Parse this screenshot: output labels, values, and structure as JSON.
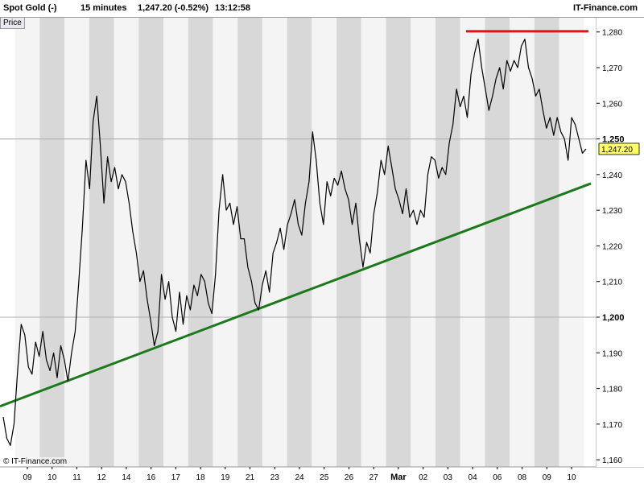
{
  "header": {
    "instrument": "Spot Gold (-)",
    "interval": "15 minutes",
    "quote": "1,247.20 (-0.52%)",
    "time": "13:12:58",
    "brand": "IT-Finance.com"
  },
  "panel_label": "Price",
  "copyright": "© IT-Finance.com",
  "colors": {
    "price_line": "#000000",
    "support_line": "#1a7a1a",
    "resistance_line": "#e81010",
    "band_dark": "#d8d8d8",
    "band_light": "#f4f4f4",
    "last_price_box": "#ffff66"
  },
  "chart_data": {
    "type": "line",
    "title": "",
    "xlabel": "",
    "ylabel": "",
    "ylim": [
      1158,
      1284
    ],
    "y_ticks": [
      1160,
      1170,
      1180,
      1190,
      1200,
      1210,
      1220,
      1230,
      1240,
      1250,
      1260,
      1270,
      1280
    ],
    "y_bold_ticks": [
      1200,
      1250
    ],
    "x_ticks": [
      "09",
      "10",
      "11",
      "12",
      "14",
      "16",
      "17",
      "18",
      "19",
      "21",
      "23",
      "24",
      "25",
      "26",
      "27",
      "Mar",
      "02",
      "03",
      "04",
      "06",
      "08",
      "09",
      "10"
    ],
    "x_bold_ticks": [
      "Mar"
    ],
    "last_price": 1247.2,
    "last_price_label": "1,247.20",
    "grid": false,
    "series": [
      {
        "values": [
          1172,
          1166,
          1164,
          1170,
          1185,
          1198,
          1195,
          1186,
          1184,
          1193,
          1189,
          1196,
          1188,
          1185,
          1190,
          1183,
          1192,
          1188,
          1182,
          1190,
          1196,
          1210,
          1225,
          1244,
          1236,
          1255,
          1262,
          1248,
          1232,
          1245,
          1238,
          1242,
          1236,
          1240,
          1238,
          1232,
          1224,
          1218,
          1210,
          1213,
          1205,
          1199,
          1192,
          1196,
          1212,
          1205,
          1210,
          1200,
          1196,
          1207,
          1198,
          1206,
          1202,
          1209,
          1206,
          1212,
          1210,
          1204,
          1201,
          1212,
          1230,
          1240,
          1230,
          1232,
          1226,
          1231,
          1222,
          1222,
          1214,
          1210,
          1204,
          1202,
          1209,
          1213,
          1207,
          1218,
          1221,
          1225,
          1219,
          1226,
          1229,
          1233,
          1226,
          1223,
          1232,
          1238,
          1252,
          1244,
          1232,
          1226,
          1238,
          1234,
          1239,
          1237,
          1241,
          1236,
          1233,
          1226,
          1232,
          1222,
          1214,
          1221,
          1218,
          1229,
          1235,
          1244,
          1240,
          1248,
          1242,
          1236,
          1233,
          1229,
          1236,
          1228,
          1230,
          1226,
          1230,
          1228,
          1240,
          1245,
          1244,
          1239,
          1242,
          1240,
          1249,
          1254,
          1264,
          1259,
          1262,
          1256,
          1268,
          1274,
          1278,
          1270,
          1264,
          1258,
          1262,
          1267,
          1270,
          1264,
          1272,
          1269,
          1272,
          1270,
          1276,
          1278,
          1270,
          1267,
          1262,
          1264,
          1258,
          1253,
          1256,
          1251,
          1256,
          1252,
          1250,
          1244,
          1256,
          1254,
          1250,
          1246,
          1247.2
        ]
      }
    ]
  }
}
